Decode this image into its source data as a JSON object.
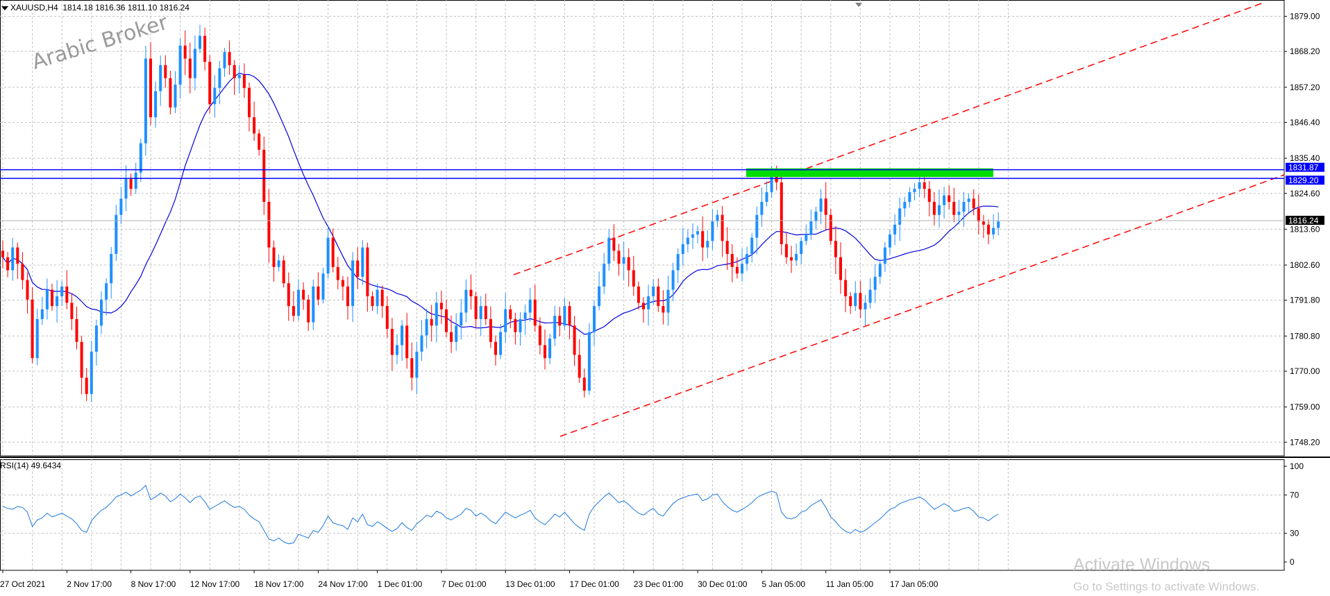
{
  "header": {
    "symbol": "XAUUSD,H4",
    "ohlc": "1814.18 1816.36 1811.10 1816.24"
  },
  "watermark": "Arabic Broker",
  "rsi": {
    "label": "RSI(14) 49.6434"
  },
  "windows_notice": {
    "title": "Activate Windows",
    "subtitle": "Go to Settings to activate Windows."
  },
  "colors": {
    "background": "#ffffff",
    "grid": "#c0c0c0",
    "bull": "#1e90ff",
    "bear": "#ff0000",
    "ma": "#0000dd",
    "channel": "#ff0000",
    "zone": "#00dd00",
    "level": "#0000ff",
    "rsi": "#1e78dc"
  },
  "chart_data": [
    {
      "type": "candlestick",
      "symbol": "XAUUSD",
      "timeframe": "H4",
      "yticks": [
        "1879.00",
        "1868.20",
        "1857.20",
        "1846.40",
        "1835.40",
        "1824.60",
        "1813.60",
        "1802.60",
        "1791.80",
        "1780.80",
        "1770.00",
        "1759.00",
        "1748.20"
      ],
      "ylim": [
        1744.0,
        1884.0
      ],
      "xticks": [
        "27 Oct 2021",
        "2 Nov 17:00",
        "8 Nov 17:00",
        "12 Nov 17:00",
        "18 Nov 17:00",
        "24 Nov 17:00",
        "1 Dec 01:00",
        "7 Dec 01:00",
        "13 Dec 01:00",
        "17 Dec 01:00",
        "23 Dec 01:00",
        "30 Dec 01:00",
        "5 Jan 05:00",
        "11 Jan 05:00",
        "17 Jan 05:00"
      ],
      "levels": [
        {
          "label": "1831.87",
          "value": 1831.87
        },
        {
          "label": "1829.20",
          "value": 1829.2
        },
        {
          "label": "1816.24",
          "value": 1816.24
        }
      ],
      "resistance_zone": {
        "from": 1829.2,
        "to": 1831.87
      },
      "closes": [
        1805,
        1801,
        1808,
        1803,
        1798,
        1792,
        1774,
        1786,
        1789,
        1795,
        1790,
        1793,
        1796,
        1791,
        1786,
        1779,
        1768,
        1763,
        1776,
        1784,
        1792,
        1797,
        1806,
        1818,
        1823,
        1829,
        1826,
        1831,
        1840,
        1866,
        1848,
        1856,
        1864,
        1860,
        1851,
        1858,
        1870,
        1866,
        1860,
        1869,
        1873,
        1865,
        1852,
        1857,
        1863,
        1868,
        1864,
        1860,
        1861,
        1857,
        1848,
        1843,
        1838,
        1822,
        1808,
        1802,
        1804,
        1797,
        1790,
        1787,
        1795,
        1792,
        1785,
        1796,
        1792,
        1800,
        1811,
        1802,
        1798,
        1796,
        1790,
        1804,
        1799,
        1808,
        1793,
        1790,
        1795,
        1790,
        1783,
        1775,
        1778,
        1784,
        1774,
        1768,
        1776,
        1781,
        1786,
        1784,
        1791,
        1789,
        1782,
        1779,
        1784,
        1788,
        1795,
        1793,
        1786,
        1790,
        1786,
        1779,
        1775,
        1782,
        1789,
        1786,
        1782,
        1786,
        1788,
        1792,
        1784,
        1778,
        1774,
        1780,
        1787,
        1784,
        1790,
        1784,
        1775,
        1768,
        1764,
        1782,
        1790,
        1796,
        1803,
        1811,
        1807,
        1803,
        1805,
        1801,
        1796,
        1791,
        1789,
        1793,
        1796,
        1790,
        1788,
        1795,
        1801,
        1806,
        1809,
        1811,
        1812,
        1813,
        1808,
        1810,
        1816,
        1818,
        1810,
        1806,
        1802,
        1800,
        1803,
        1806,
        1811,
        1818,
        1822,
        1825,
        1830,
        1828,
        1809,
        1805,
        1804,
        1806,
        1810,
        1812,
        1816,
        1819,
        1823,
        1818,
        1810,
        1805,
        1798,
        1793,
        1790,
        1794,
        1789,
        1791,
        1795,
        1799,
        1803,
        1808,
        1812,
        1815,
        1820,
        1822,
        1825,
        1826,
        1828,
        1826,
        1822,
        1818,
        1821,
        1824,
        1822,
        1818,
        1819,
        1822,
        1823,
        1820,
        1816,
        1815,
        1812,
        1814,
        1816
      ]
    },
    {
      "type": "line",
      "name": "RSI(14)",
      "ylim": [
        0,
        100
      ],
      "yticks": [
        "100",
        "70",
        "30",
        "0"
      ],
      "values": [
        58,
        56,
        55,
        58,
        57,
        52,
        37,
        44,
        46,
        51,
        47,
        49,
        51,
        48,
        45,
        40,
        33,
        31,
        43,
        49,
        54,
        57,
        62,
        68,
        70,
        73,
        69,
        72,
        75,
        80,
        65,
        68,
        72,
        69,
        63,
        66,
        71,
        67,
        62,
        67,
        69,
        63,
        55,
        58,
        61,
        64,
        60,
        57,
        58,
        55,
        49,
        45,
        42,
        33,
        24,
        22,
        25,
        21,
        19,
        20,
        29,
        27,
        25,
        33,
        31,
        38,
        48,
        41,
        39,
        38,
        34,
        46,
        42,
        50,
        39,
        37,
        42,
        39,
        35,
        32,
        35,
        41,
        36,
        33,
        40,
        44,
        49,
        47,
        53,
        51,
        46,
        44,
        47,
        50,
        56,
        54,
        48,
        51,
        48,
        43,
        40,
        46,
        52,
        49,
        46,
        49,
        51,
        54,
        46,
        42,
        39,
        44,
        50,
        47,
        52,
        46,
        40,
        36,
        33,
        50,
        58,
        63,
        68,
        72,
        67,
        62,
        64,
        60,
        55,
        51,
        49,
        53,
        56,
        50,
        48,
        55,
        61,
        65,
        67,
        69,
        70,
        71,
        64,
        66,
        70,
        71,
        63,
        58,
        54,
        52,
        55,
        58,
        62,
        67,
        70,
        72,
        74,
        72,
        52,
        46,
        45,
        47,
        52,
        54,
        59,
        62,
        65,
        57,
        47,
        42,
        36,
        32,
        30,
        34,
        31,
        33,
        37,
        41,
        45,
        50,
        55,
        57,
        61,
        63,
        65,
        66,
        68,
        65,
        60,
        55,
        58,
        61,
        58,
        53,
        54,
        56,
        57,
        53,
        47,
        46,
        43,
        47,
        50
      ]
    }
  ]
}
